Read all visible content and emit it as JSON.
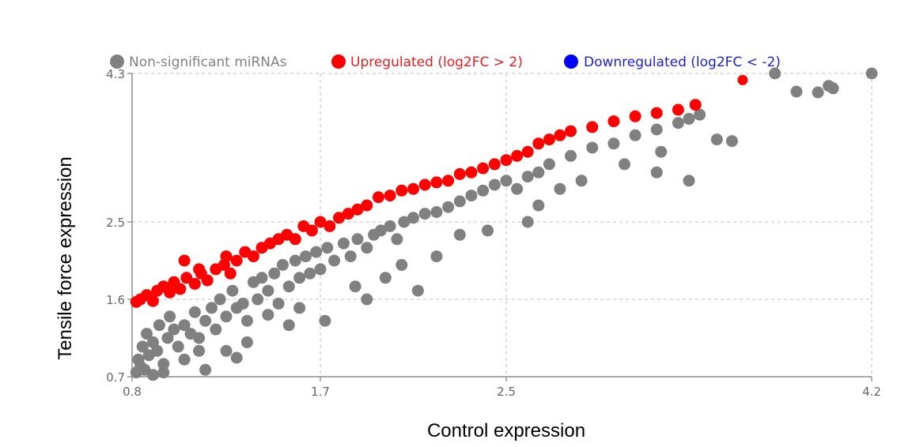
{
  "chart_data": {
    "type": "scatter",
    "title": "",
    "xlabel": "Control expression",
    "ylabel": "Tensile force expression",
    "x_ticks": [
      0.8,
      1.7,
      2.5,
      4.2
    ],
    "y_ticks": [
      0.7,
      1.6,
      2.5,
      4.3
    ],
    "x_tick_labels": [
      "0.8",
      "1.7",
      "2.5",
      "4.2"
    ],
    "y_tick_labels": [
      "0.7",
      "1.6",
      "2.5",
      "4.3"
    ],
    "xlim": [
      0.8,
      4.2
    ],
    "ylim": [
      0.7,
      4.3
    ],
    "grid": true,
    "legend_position": "top",
    "series": [
      {
        "name": "Non-significant miRNAs",
        "color": "#808080",
        "text_color": "#808080",
        "points": [
          [
            0.82,
            0.75
          ],
          [
            0.84,
            0.82
          ],
          [
            0.83,
            0.9
          ],
          [
            0.86,
            0.78
          ],
          [
            0.88,
            0.95
          ],
          [
            0.85,
            1.05
          ],
          [
            0.9,
            1.1
          ],
          [
            0.87,
            1.2
          ],
          [
            0.92,
            1.0
          ],
          [
            0.95,
            0.85
          ],
          [
            0.97,
            1.15
          ],
          [
            0.93,
            1.3
          ],
          [
            1.0,
            1.25
          ],
          [
            0.98,
            1.4
          ],
          [
            1.02,
            1.05
          ],
          [
            1.05,
            1.3
          ],
          [
            1.08,
            1.2
          ],
          [
            1.1,
            1.45
          ],
          [
            1.12,
            1.0
          ],
          [
            1.15,
            1.35
          ],
          [
            1.18,
            1.5
          ],
          [
            1.2,
            1.25
          ],
          [
            1.22,
            1.6
          ],
          [
            1.25,
            1.4
          ],
          [
            1.28,
            1.7
          ],
          [
            1.3,
            1.5
          ],
          [
            1.33,
            1.55
          ],
          [
            1.35,
            1.35
          ],
          [
            1.38,
            1.8
          ],
          [
            1.4,
            1.6
          ],
          [
            1.42,
            1.85
          ],
          [
            1.45,
            1.7
          ],
          [
            1.48,
            1.9
          ],
          [
            1.5,
            1.55
          ],
          [
            1.52,
            2.0
          ],
          [
            1.55,
            1.75
          ],
          [
            1.58,
            2.05
          ],
          [
            1.6,
            1.85
          ],
          [
            1.63,
            2.1
          ],
          [
            1.65,
            1.9
          ],
          [
            1.68,
            2.15
          ],
          [
            1.7,
            1.95
          ],
          [
            1.73,
            2.2
          ],
          [
            1.76,
            2.05
          ],
          [
            1.8,
            2.25
          ],
          [
            1.83,
            2.1
          ],
          [
            1.86,
            2.3
          ],
          [
            1.9,
            2.2
          ],
          [
            1.93,
            2.35
          ],
          [
            1.96,
            2.4
          ],
          [
            2.0,
            2.45
          ],
          [
            2.03,
            2.3
          ],
          [
            2.06,
            2.5
          ],
          [
            2.1,
            2.55
          ],
          [
            2.15,
            2.6
          ],
          [
            2.2,
            2.62
          ],
          [
            2.25,
            2.68
          ],
          [
            2.3,
            2.75
          ],
          [
            2.35,
            2.82
          ],
          [
            2.4,
            2.88
          ],
          [
            2.45,
            2.95
          ],
          [
            2.5,
            3.0
          ],
          [
            2.55,
            2.9
          ],
          [
            2.6,
            3.05
          ],
          [
            2.65,
            3.1
          ],
          [
            2.7,
            3.2
          ],
          [
            2.8,
            3.3
          ],
          [
            2.9,
            3.4
          ],
          [
            3.0,
            3.45
          ],
          [
            3.1,
            3.55
          ],
          [
            3.2,
            3.62
          ],
          [
            3.3,
            3.7
          ],
          [
            3.35,
            3.75
          ],
          [
            3.4,
            3.8
          ],
          [
            1.25,
            1.0
          ],
          [
            1.35,
            1.1
          ],
          [
            1.55,
            1.3
          ],
          [
            1.72,
            1.35
          ],
          [
            1.9,
            1.6
          ],
          [
            1.98,
            1.85
          ],
          [
            2.12,
            1.7
          ],
          [
            2.2,
            2.1
          ],
          [
            2.3,
            2.35
          ],
          [
            2.42,
            2.4
          ],
          [
            2.6,
            2.5
          ],
          [
            2.65,
            2.7
          ],
          [
            2.75,
            2.9
          ],
          [
            2.85,
            3.0
          ],
          [
            3.05,
            3.2
          ],
          [
            3.22,
            3.35
          ],
          [
            3.48,
            3.5
          ],
          [
            3.55,
            3.48
          ],
          [
            3.75,
            4.3
          ],
          [
            3.85,
            4.08
          ],
          [
            3.95,
            4.07
          ],
          [
            4.0,
            4.15
          ],
          [
            4.02,
            4.12
          ],
          [
            4.2,
            4.3
          ],
          [
            3.2,
            3.1
          ],
          [
            3.35,
            3.0
          ],
          [
            1.45,
            1.42
          ],
          [
            1.6,
            1.5
          ],
          [
            1.85,
            1.75
          ],
          [
            2.05,
            2.0
          ],
          [
            1.15,
            0.78
          ],
          [
            1.05,
            0.9
          ],
          [
            0.9,
            0.72
          ],
          [
            0.95,
            0.75
          ],
          [
            1.3,
            0.92
          ],
          [
            1.12,
            1.15
          ]
        ]
      },
      {
        "name": "Upregulated (log2FC > 2)",
        "color": "#ff0000",
        "text_color": "#e02020",
        "points": [
          [
            0.82,
            1.57
          ],
          [
            0.84,
            1.6
          ],
          [
            0.87,
            1.65
          ],
          [
            0.9,
            1.58
          ],
          [
            0.92,
            1.7
          ],
          [
            0.95,
            1.75
          ],
          [
            0.98,
            1.68
          ],
          [
            1.0,
            1.8
          ],
          [
            1.03,
            1.72
          ],
          [
            1.06,
            1.85
          ],
          [
            1.1,
            1.78
          ],
          [
            1.13,
            1.9
          ],
          [
            1.16,
            1.82
          ],
          [
            1.2,
            1.95
          ],
          [
            1.24,
            2.0
          ],
          [
            1.27,
            1.9
          ],
          [
            1.3,
            2.05
          ],
          [
            1.34,
            2.15
          ],
          [
            1.38,
            2.1
          ],
          [
            1.42,
            2.2
          ],
          [
            1.46,
            2.25
          ],
          [
            1.5,
            2.3
          ],
          [
            1.54,
            2.35
          ],
          [
            1.58,
            2.3
          ],
          [
            1.62,
            2.45
          ],
          [
            1.66,
            2.4
          ],
          [
            1.7,
            2.5
          ],
          [
            1.74,
            2.45
          ],
          [
            1.78,
            2.55
          ],
          [
            1.82,
            2.6
          ],
          [
            1.86,
            2.65
          ],
          [
            1.9,
            2.7
          ],
          [
            1.95,
            2.8
          ],
          [
            2.0,
            2.82
          ],
          [
            2.05,
            2.88
          ],
          [
            2.1,
            2.9
          ],
          [
            2.15,
            2.95
          ],
          [
            2.2,
            2.98
          ],
          [
            2.25,
            3.0
          ],
          [
            2.3,
            3.08
          ],
          [
            2.35,
            3.1
          ],
          [
            2.4,
            3.15
          ],
          [
            2.45,
            3.2
          ],
          [
            2.5,
            3.25
          ],
          [
            2.55,
            3.3
          ],
          [
            2.6,
            3.35
          ],
          [
            2.65,
            3.45
          ],
          [
            2.7,
            3.5
          ],
          [
            2.75,
            3.55
          ],
          [
            2.8,
            3.6
          ],
          [
            2.9,
            3.65
          ],
          [
            3.0,
            3.72
          ],
          [
            3.1,
            3.78
          ],
          [
            3.2,
            3.82
          ],
          [
            3.3,
            3.86
          ],
          [
            3.38,
            3.92
          ],
          [
            3.6,
            4.22
          ],
          [
            1.05,
            2.05
          ],
          [
            1.12,
            1.95
          ],
          [
            1.25,
            2.1
          ]
        ]
      },
      {
        "name": "Downregulated (log2FC < -2)",
        "color": "#0000ff",
        "text_color": "#2020c8",
        "points": []
      }
    ]
  }
}
